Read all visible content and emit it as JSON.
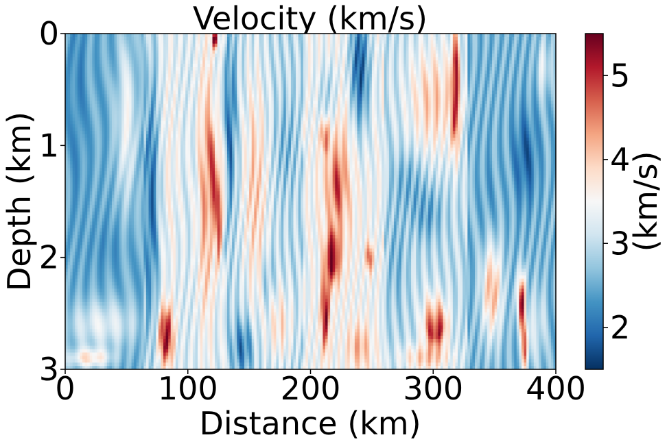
{
  "chart_data": {
    "type": "heatmap",
    "title": "Velocity (km/s)",
    "xlabel": "Distance (km)",
    "ylabel": "Depth (km)",
    "xlim": [
      0,
      400
    ],
    "ylim": [
      0,
      3
    ],
    "y_inverted": true,
    "x_ticks": [
      "0",
      "100",
      "200",
      "300",
      "400"
    ],
    "y_ticks": [
      "0",
      "1",
      "2",
      "3"
    ],
    "colorbar": {
      "label": "(km/s)",
      "range": [
        1.5,
        5.5
      ],
      "ticks": [
        "2",
        "3",
        "4",
        "5"
      ],
      "colormap": "RdBu_r",
      "colors": [
        "#053061",
        "#2166ac",
        "#4393c3",
        "#92c5de",
        "#d1e5f0",
        "#f7f7f7",
        "#fddbc7",
        "#f4a582",
        "#d6604d",
        "#b2182b",
        "#67001f"
      ]
    },
    "blocks": [
      {
        "x_range": [
          0,
          65
        ],
        "background": 2.5,
        "features": [
          {
            "x": 10,
            "y": 0.5,
            "rx": 8,
            "ry": 1.2,
            "v": 2.2
          },
          {
            "x": 50,
            "y": 0.8,
            "rx": 10,
            "ry": 0.9,
            "v": 3.4
          },
          {
            "x": 35,
            "y": 1.9,
            "rx": 18,
            "ry": 0.3,
            "v": 2.3
          },
          {
            "x": 30,
            "y": 2.6,
            "rx": 35,
            "ry": 0.25,
            "v": 3.3
          },
          {
            "x": 20,
            "y": 2.9,
            "rx": 20,
            "ry": 0.1,
            "v": 3.8
          }
        ]
      },
      {
        "x_range": [
          65,
          130
        ],
        "background": 3.2,
        "features": [
          {
            "x": 70,
            "y": 1.5,
            "rx": 8,
            "ry": 1.5,
            "v": 2.0
          },
          {
            "x": 85,
            "y": 1.2,
            "rx": 10,
            "ry": 1.5,
            "v": 3.5
          },
          {
            "x": 115,
            "y": 1.4,
            "rx": 8,
            "ry": 1.5,
            "v": 4.3
          },
          {
            "x": 120,
            "y": 1.2,
            "rx": 3,
            "ry": 0.4,
            "v": 5.0
          },
          {
            "x": 125,
            "y": 1.6,
            "rx": 3,
            "ry": 0.5,
            "v": 5.3
          },
          {
            "x": 122,
            "y": 0.05,
            "rx": 3,
            "ry": 0.1,
            "v": 5.4
          },
          {
            "x": 82,
            "y": 2.7,
            "rx": 7,
            "ry": 0.3,
            "v": 5.5
          }
        ]
      },
      {
        "x_range": [
          130,
          195
        ],
        "background": 3.0,
        "features": [
          {
            "x": 135,
            "y": 0.8,
            "rx": 5,
            "ry": 0.9,
            "v": 2.0
          },
          {
            "x": 155,
            "y": 1.4,
            "rx": 12,
            "ry": 1.3,
            "v": 4.0
          },
          {
            "x": 180,
            "y": 1.0,
            "rx": 10,
            "ry": 0.5,
            "v": 2.6
          },
          {
            "x": 175,
            "y": 2.6,
            "rx": 12,
            "ry": 0.4,
            "v": 3.8
          },
          {
            "x": 145,
            "y": 2.8,
            "rx": 10,
            "ry": 0.3,
            "v": 2.0
          },
          {
            "x": 165,
            "y": 2.2,
            "rx": 6,
            "ry": 0.3,
            "v": 2.5
          }
        ]
      },
      {
        "x_range": [
          195,
          260
        ],
        "background": 3.4,
        "features": [
          {
            "x": 240,
            "y": 0.3,
            "rx": 10,
            "ry": 0.7,
            "v": 1.8
          },
          {
            "x": 215,
            "y": 0.6,
            "rx": 10,
            "ry": 0.4,
            "v": 2.6
          },
          {
            "x": 222,
            "y": 1.3,
            "rx": 15,
            "ry": 0.9,
            "v": 4.3
          },
          {
            "x": 222,
            "y": 1.35,
            "rx": 4,
            "ry": 0.2,
            "v": 5.5
          },
          {
            "x": 212,
            "y": 0.9,
            "rx": 4,
            "ry": 0.15,
            "v": 5.2
          },
          {
            "x": 218,
            "y": 2.0,
            "rx": 6,
            "ry": 0.25,
            "v": 5.5
          },
          {
            "x": 212,
            "y": 2.5,
            "rx": 4,
            "ry": 0.4,
            "v": 5.3
          },
          {
            "x": 240,
            "y": 2.8,
            "rx": 12,
            "ry": 0.25,
            "v": 4.2
          },
          {
            "x": 248,
            "y": 2.0,
            "rx": 3,
            "ry": 0.15,
            "v": 5.0
          }
        ]
      },
      {
        "x_range": [
          260,
          328
        ],
        "background": 3.0,
        "features": [
          {
            "x": 300,
            "y": 0.6,
            "rx": 25,
            "ry": 0.6,
            "v": 4.0
          },
          {
            "x": 318,
            "y": 0.5,
            "rx": 4,
            "ry": 0.6,
            "v": 5.3
          },
          {
            "x": 280,
            "y": 1.3,
            "rx": 15,
            "ry": 0.3,
            "v": 2.5
          },
          {
            "x": 295,
            "y": 1.6,
            "rx": 15,
            "ry": 0.3,
            "v": 2.4
          },
          {
            "x": 270,
            "y": 2.0,
            "rx": 10,
            "ry": 0.6,
            "v": 2.6
          },
          {
            "x": 302,
            "y": 2.62,
            "rx": 10,
            "ry": 0.2,
            "v": 5.5
          },
          {
            "x": 300,
            "y": 2.45,
            "rx": 12,
            "ry": 0.25,
            "v": 3.5
          },
          {
            "x": 295,
            "y": 2.9,
            "rx": 25,
            "ry": 0.15,
            "v": 4.0
          }
        ]
      },
      {
        "x_range": [
          328,
          400
        ],
        "background": 2.6,
        "features": [
          {
            "x": 375,
            "y": 1.1,
            "rx": 12,
            "ry": 0.5,
            "v": 1.9
          },
          {
            "x": 345,
            "y": 1.5,
            "rx": 8,
            "ry": 0.5,
            "v": 2.4
          },
          {
            "x": 348,
            "y": 2.3,
            "rx": 10,
            "ry": 0.5,
            "v": 4.2
          },
          {
            "x": 372,
            "y": 2.4,
            "rx": 4,
            "ry": 0.3,
            "v": 5.3
          },
          {
            "x": 375,
            "y": 2.8,
            "rx": 3,
            "ry": 0.25,
            "v": 5.0
          },
          {
            "x": 390,
            "y": 0.3,
            "rx": 6,
            "ry": 0.3,
            "v": 3.3
          },
          {
            "x": 385,
            "y": 2.6,
            "rx": 8,
            "ry": 0.4,
            "v": 3.2
          }
        ]
      }
    ],
    "stripes": [
      {
        "x_range": [
          0,
          65
        ],
        "amp": 0.22,
        "freq": 0.55
      },
      {
        "x_range": [
          65,
          130
        ],
        "amp": 0.35,
        "freq": 0.8
      },
      {
        "x_range": [
          130,
          195
        ],
        "amp": 0.4,
        "freq": 0.9
      },
      {
        "x_range": [
          195,
          260
        ],
        "amp": 0.35,
        "freq": 0.85
      },
      {
        "x_range": [
          260,
          328
        ],
        "amp": 0.35,
        "freq": 0.8
      },
      {
        "x_range": [
          328,
          400
        ],
        "amp": 0.3,
        "freq": 0.7
      }
    ]
  }
}
